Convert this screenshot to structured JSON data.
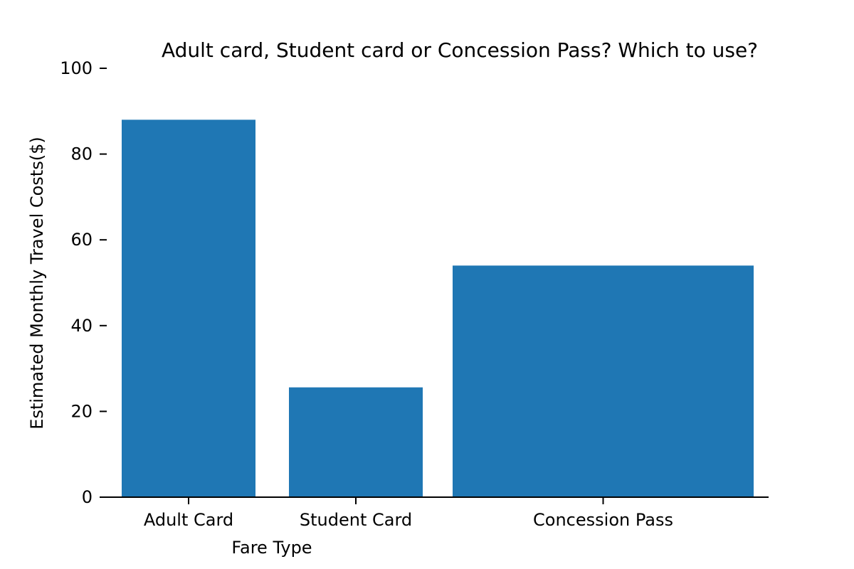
{
  "chart_data": {
    "type": "bar",
    "title": "Adult card, Student card or Concession Pass? Which to use?",
    "xlabel": "Fare Type",
    "ylabel": "Estimated Monthly Travel Costs($)",
    "categories": [
      "Adult Card",
      "Student Card",
      "Concession Pass"
    ],
    "values": [
      88,
      25.6,
      54
    ],
    "ylim": [
      0,
      100
    ],
    "yticks": [
      0,
      20,
      40,
      60,
      80,
      100
    ],
    "bar_color": "#1f77b4",
    "grid": false,
    "legend": "none"
  }
}
